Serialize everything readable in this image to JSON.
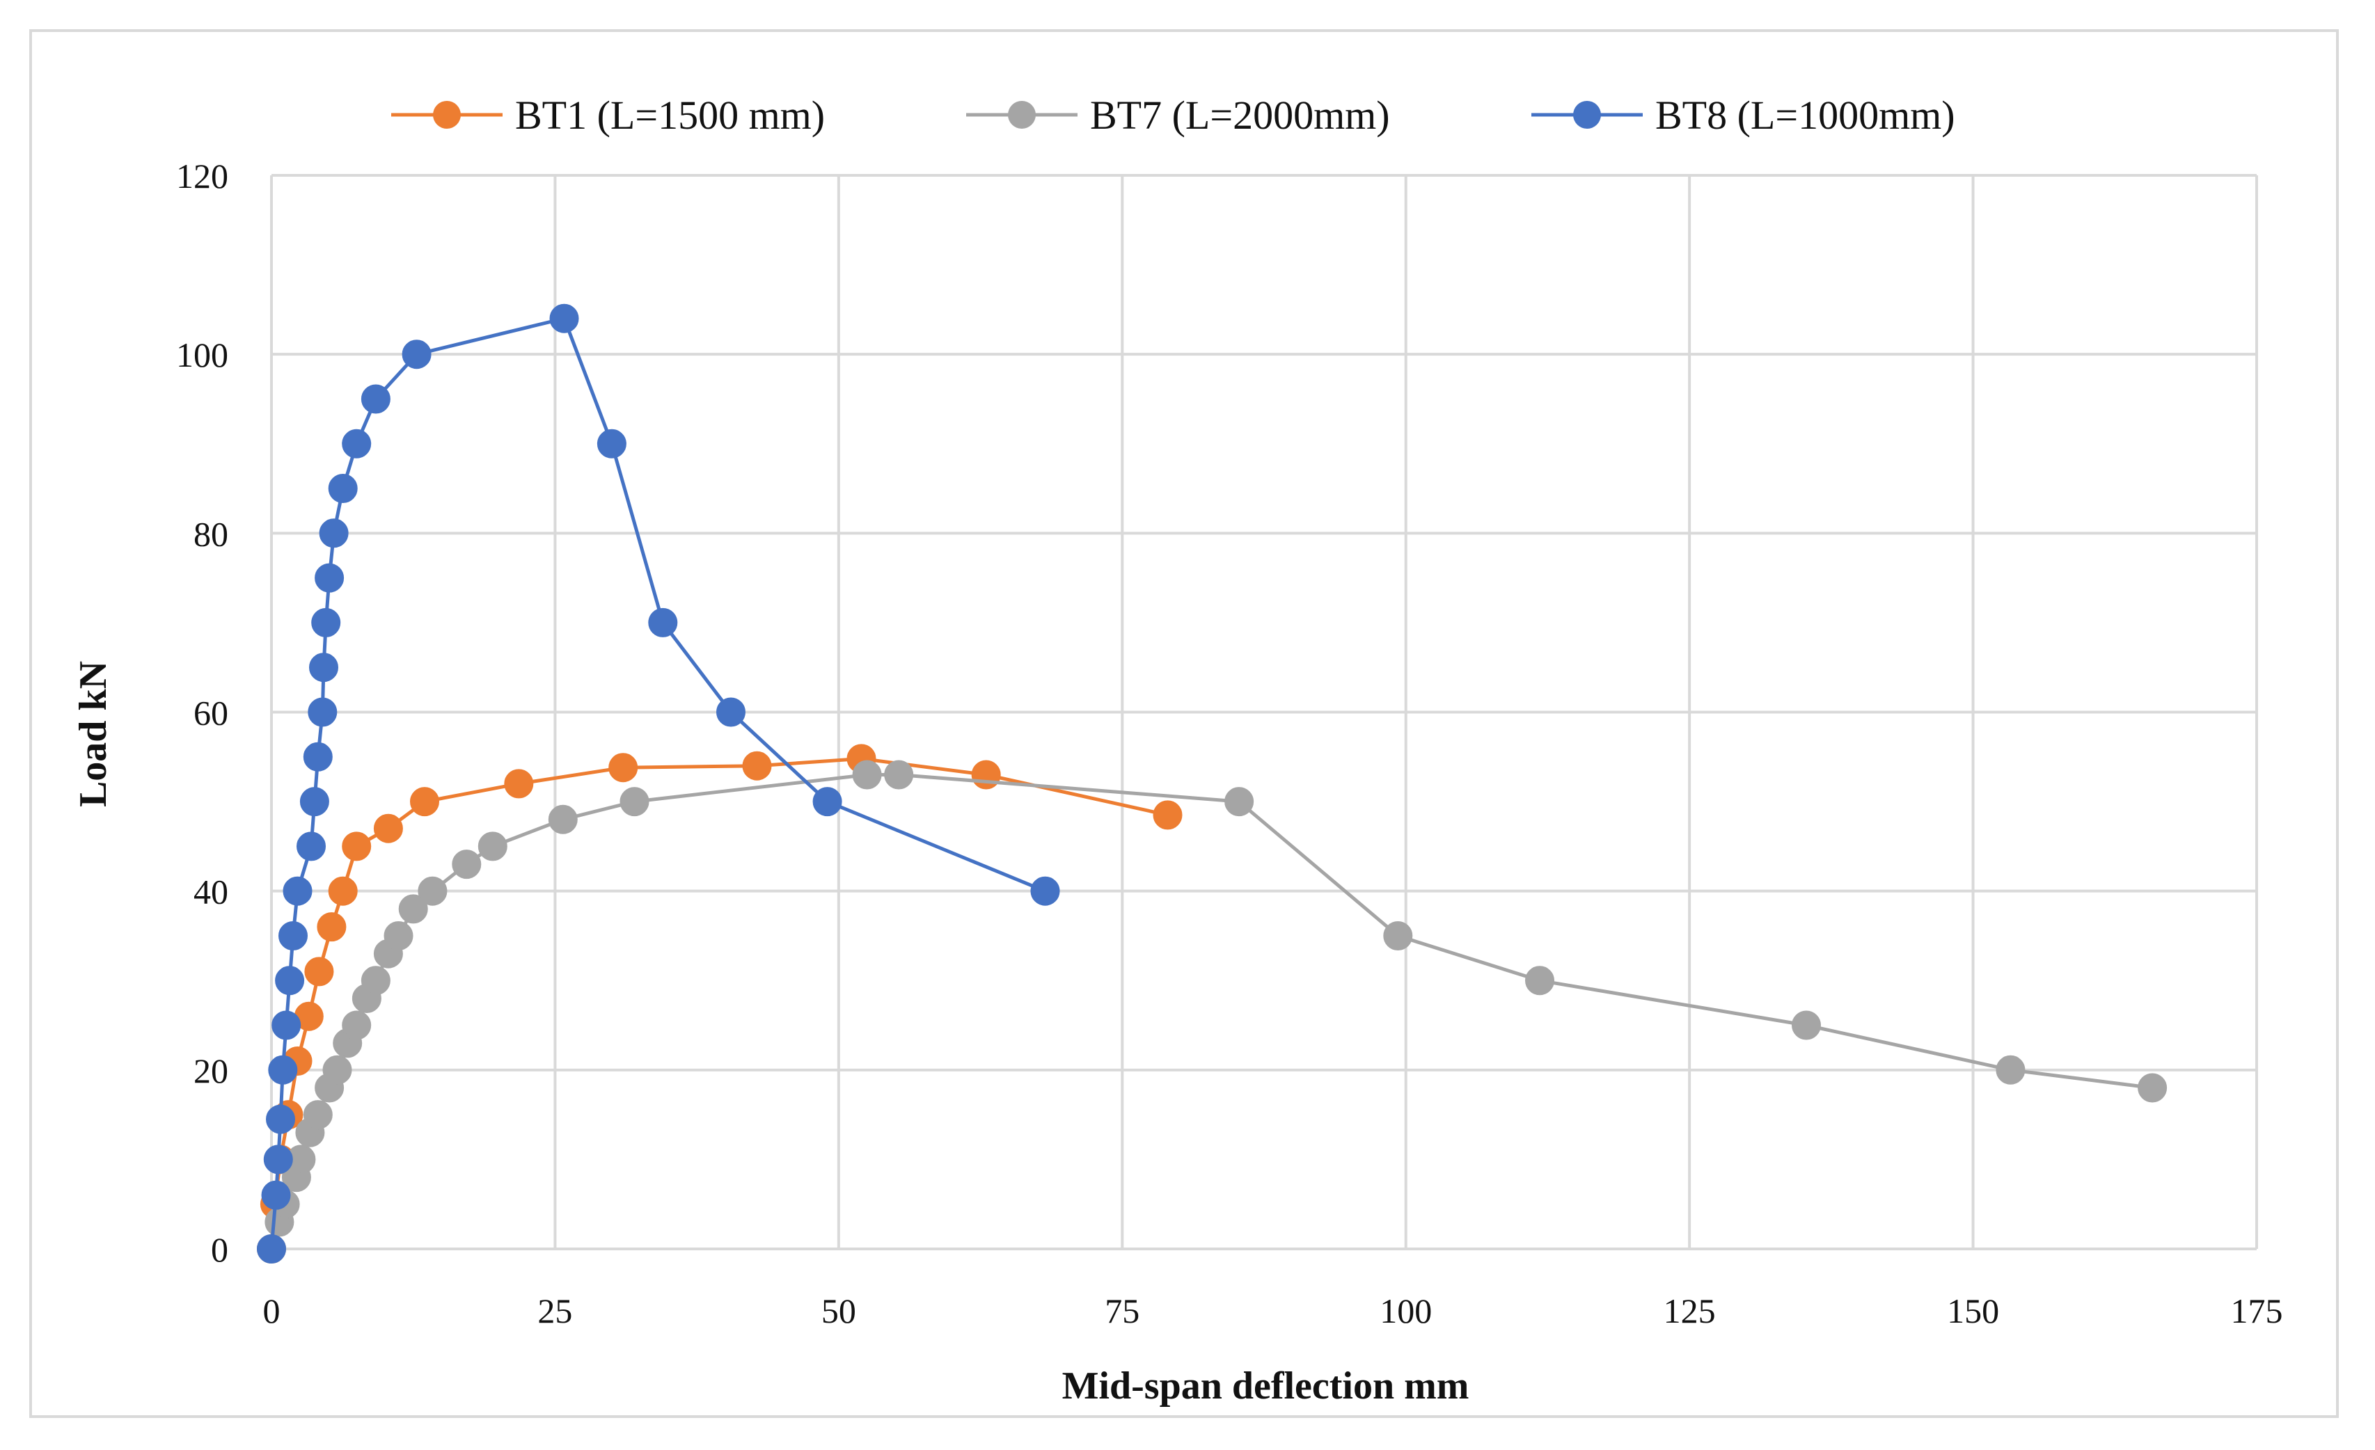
{
  "chart_data": {
    "type": "scatter",
    "title": "",
    "xlabel": "Mid-span deflection mm",
    "ylabel": "Load kN",
    "xlim": [
      0,
      175
    ],
    "ylim": [
      0,
      120
    ],
    "xticks": [
      0,
      25,
      50,
      75,
      100,
      125,
      150,
      175
    ],
    "yticks": [
      0,
      20,
      40,
      60,
      80,
      100,
      120
    ],
    "grid": true,
    "legend_position": "top",
    "series": [
      {
        "name": "BT1 (L=1500 mm)",
        "color": "#ED7D31",
        "x": [
          0,
          0.3,
          0.8,
          1.5,
          2.3,
          3.3,
          4.2,
          5.3,
          6.3,
          7.5,
          10.3,
          13.5,
          21.8,
          31,
          42.8,
          52,
          63,
          79
        ],
        "y": [
          0,
          5,
          10,
          15,
          21,
          26,
          31,
          36,
          40,
          45,
          47,
          50,
          52,
          53.8,
          54,
          54.8,
          53,
          48.5
        ]
      },
      {
        "name": "BT7 (L=2000mm)",
        "color": "#A5A5A5",
        "x": [
          0,
          0.7,
          1.2,
          2.2,
          2.6,
          3.4,
          4.1,
          5.1,
          5.8,
          6.7,
          7.5,
          8.4,
          9.2,
          10.3,
          11.2,
          12.5,
          14.2,
          17.2,
          19.5,
          25.7,
          32,
          52.5,
          55.3,
          85.3,
          99.3,
          111.8,
          135.3,
          153.3,
          165.8
        ],
        "y": [
          0,
          3,
          5,
          8,
          10,
          13,
          15,
          18,
          20,
          23,
          25,
          28,
          30,
          33,
          35,
          38,
          40,
          43,
          45,
          48,
          50,
          53,
          53,
          50,
          35,
          30,
          25,
          20,
          18
        ]
      },
      {
        "name": "BT8 (L=1000mm)",
        "color": "#4472C4",
        "x": [
          0,
          0.4,
          0.6,
          0.8,
          1.0,
          1.3,
          1.6,
          1.9,
          2.3,
          3.5,
          3.8,
          4.1,
          4.5,
          4.6,
          4.8,
          5.1,
          5.5,
          6.3,
          7.5,
          9.2,
          12.8,
          25.8,
          30,
          34.5,
          40.5,
          49,
          68.2
        ],
        "y": [
          0,
          6,
          10,
          14.5,
          20,
          25,
          30,
          35,
          40,
          45,
          50,
          55,
          60,
          65,
          70,
          75,
          80,
          85,
          90,
          95,
          100,
          104,
          90,
          70,
          60,
          50,
          40
        ]
      }
    ]
  }
}
